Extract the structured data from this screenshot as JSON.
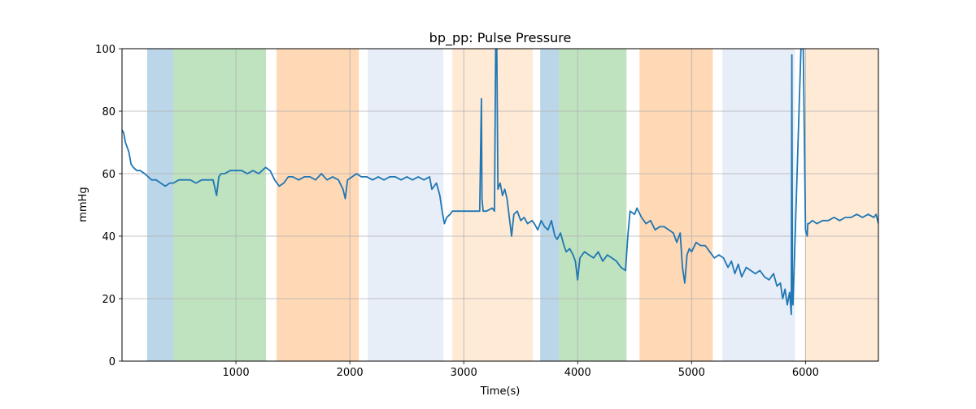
{
  "chart_data": {
    "type": "line",
    "title": "bp_pp: Pulse Pressure",
    "xlabel": "Time(s)",
    "ylabel": "mmHg",
    "xlim": [
      0,
      6640
    ],
    "ylim": [
      0,
      100
    ],
    "xticks": [
      1000,
      2000,
      3000,
      4000,
      5000,
      6000
    ],
    "yticks": [
      0,
      20,
      40,
      60,
      80,
      100
    ],
    "grid": true,
    "line_color": "#1f77b4",
    "spans": [
      {
        "start": 221,
        "end": 450,
        "color": "#1f77b4"
      },
      {
        "start": 450,
        "end": 1264,
        "color": "#2ca02c"
      },
      {
        "start": 1357,
        "end": 2079,
        "color": "#ff7f0e"
      },
      {
        "start": 2157,
        "end": 2821,
        "color": "#aec7e8"
      },
      {
        "start": 2900,
        "end": 3607,
        "color": "#ffbb78"
      },
      {
        "start": 3671,
        "end": 3836,
        "color": "#1f77b4"
      },
      {
        "start": 3836,
        "end": 4429,
        "color": "#2ca02c"
      },
      {
        "start": 4543,
        "end": 5186,
        "color": "#ff7f0e"
      },
      {
        "start": 5271,
        "end": 5907,
        "color": "#aec7e8"
      },
      {
        "start": 5993,
        "end": 6640,
        "color": "#ffbb78"
      }
    ],
    "series": [
      {
        "name": "bp_pp",
        "x": [
          0,
          15,
          30,
          60,
          80,
          100,
          130,
          160,
          200,
          230,
          260,
          300,
          340,
          380,
          420,
          450,
          500,
          550,
          600,
          650,
          700,
          750,
          800,
          830,
          850,
          870,
          900,
          950,
          1000,
          1050,
          1100,
          1150,
          1200,
          1230,
          1260,
          1300,
          1340,
          1380,
          1420,
          1460,
          1500,
          1550,
          1600,
          1650,
          1700,
          1750,
          1800,
          1850,
          1900,
          1940,
          1960,
          1980,
          2020,
          2060,
          2100,
          2150,
          2200,
          2250,
          2300,
          2350,
          2400,
          2450,
          2500,
          2550,
          2600,
          2650,
          2700,
          2720,
          2760,
          2790,
          2810,
          2830,
          2850,
          2880,
          2900,
          2950,
          3000,
          3050,
          3100,
          3140,
          3155,
          3160,
          3170,
          3200,
          3250,
          3270,
          3280,
          3290,
          3300,
          3320,
          3340,
          3360,
          3380,
          3400,
          3420,
          3440,
          3470,
          3500,
          3530,
          3560,
          3600,
          3620,
          3650,
          3680,
          3710,
          3740,
          3770,
          3800,
          3820,
          3850,
          3880,
          3900,
          3930,
          3960,
          3980,
          4000,
          4020,
          4060,
          4100,
          4140,
          4180,
          4220,
          4260,
          4300,
          4340,
          4380,
          4420,
          4440,
          4460,
          4500,
          4520,
          4560,
          4600,
          4640,
          4680,
          4720,
          4760,
          4800,
          4840,
          4870,
          4900,
          4920,
          4940,
          4960,
          4980,
          5000,
          5040,
          5080,
          5120,
          5160,
          5200,
          5240,
          5280,
          5320,
          5350,
          5380,
          5410,
          5440,
          5480,
          5520,
          5560,
          5600,
          5640,
          5680,
          5720,
          5750,
          5780,
          5800,
          5820,
          5840,
          5860,
          5875,
          5880,
          5885,
          5890,
          5960,
          5980,
          6000,
          6015,
          6020,
          6030,
          6060,
          6100,
          6150,
          6200,
          6250,
          6300,
          6350,
          6400,
          6450,
          6500,
          6550,
          6600,
          6620,
          6640
        ],
        "y": [
          74,
          73,
          70,
          67,
          63,
          62,
          61,
          61,
          60,
          59,
          58,
          58,
          57,
          56,
          57,
          57,
          58,
          58,
          58,
          57,
          58,
          58,
          58,
          53,
          59,
          60,
          60,
          61,
          61,
          61,
          60,
          61,
          60,
          61,
          62,
          61,
          58,
          56,
          57,
          59,
          59,
          58,
          59,
          59,
          58,
          60,
          58,
          59,
          58,
          55,
          52,
          58,
          59,
          60,
          59,
          59,
          58,
          59,
          58,
          59,
          59,
          58,
          59,
          58,
          59,
          58,
          59,
          55,
          57,
          53,
          48,
          44,
          46,
          47,
          48,
          48,
          48,
          48,
          48,
          48,
          84,
          52,
          48,
          48,
          49,
          48,
          100,
          100,
          55,
          57,
          53,
          55,
          52,
          46,
          40,
          47,
          48,
          45,
          46,
          44,
          45,
          44,
          42,
          45,
          43,
          42,
          45,
          40,
          39,
          41,
          37,
          35,
          36,
          34,
          32,
          26,
          33,
          35,
          34,
          33,
          35,
          32,
          34,
          33,
          32,
          30,
          29,
          40,
          48,
          47,
          49,
          46,
          44,
          45,
          42,
          43,
          43,
          42,
          41,
          38,
          41,
          30,
          25,
          34,
          36,
          35,
          38,
          37,
          37,
          35,
          33,
          34,
          33,
          30,
          32,
          28,
          31,
          27,
          30,
          29,
          28,
          29,
          27,
          26,
          28,
          24,
          25,
          20,
          23,
          18,
          22,
          15,
          98,
          20,
          18,
          100,
          100,
          42,
          40,
          44,
          44,
          45,
          44,
          45,
          45,
          46,
          45,
          46,
          46,
          47,
          46,
          47,
          46,
          47,
          44
        ]
      }
    ]
  }
}
